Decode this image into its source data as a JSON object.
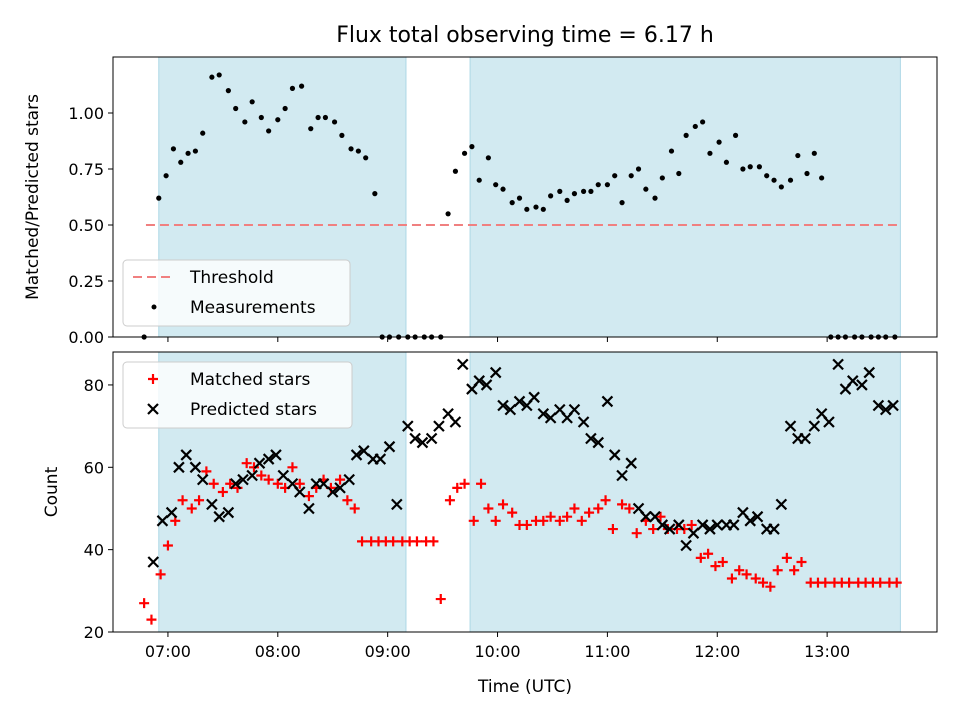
{
  "title": "Flux total observing time = 6.17 h",
  "colors": {
    "band": "#add8e6",
    "threshold": "#f08080",
    "measurement": "#000000",
    "matched": "#ff0000",
    "predicted": "#000000"
  },
  "chart_data": [
    {
      "type": "scatter",
      "title": "Flux total observing time = 6.17 h",
      "xlabel": "",
      "ylabel": "Matched/Predicted stars",
      "xlim": [
        "06:30",
        "14:00"
      ],
      "ylim": [
        0,
        1.25
      ],
      "yticks": [
        0.0,
        0.25,
        0.5,
        0.75,
        1.0
      ],
      "ytick_labels": [
        "0.00",
        "0.25",
        "0.50",
        "0.75",
        "1.00"
      ],
      "grid": false,
      "legend_position": "lower-left",
      "shaded_intervals": [
        [
          "06:55",
          "09:10"
        ],
        [
          "09:45",
          "13:40"
        ]
      ],
      "series": [
        {
          "name": "Threshold",
          "kind": "dashed-line",
          "x": [
            "06:48",
            "13:40"
          ],
          "y": [
            0.5,
            0.5
          ]
        },
        {
          "name": "Measurements",
          "kind": "points",
          "x": [
            "06:47",
            "06:55",
            "06:59",
            "07:03",
            "07:07",
            "07:11",
            "07:15",
            "07:19",
            "07:24",
            "07:28",
            "07:33",
            "07:37",
            "07:42",
            "07:46",
            "07:51",
            "07:55",
            "08:00",
            "08:04",
            "08:08",
            "08:13",
            "08:18",
            "08:22",
            "08:26",
            "08:31",
            "08:35",
            "08:40",
            "08:44",
            "08:48",
            "08:53",
            "08:57",
            "09:01",
            "09:06",
            "09:11",
            "09:15",
            "09:20",
            "09:24",
            "09:29",
            "09:33",
            "09:37",
            "09:42",
            "09:46",
            "09:50",
            "09:55",
            "09:59",
            "10:03",
            "10:08",
            "10:12",
            "10:16",
            "10:21",
            "10:25",
            "10:29",
            "10:34",
            "10:38",
            "10:42",
            "10:47",
            "10:51",
            "10:55",
            "11:00",
            "11:04",
            "11:08",
            "11:13",
            "11:17",
            "11:21",
            "11:26",
            "11:30",
            "11:35",
            "11:39",
            "11:43",
            "11:48",
            "11:52",
            "11:56",
            "12:01",
            "12:05",
            "12:10",
            "12:14",
            "12:18",
            "12:23",
            "12:27",
            "12:31",
            "12:35",
            "12:40",
            "12:44",
            "12:49",
            "12:53",
            "12:57",
            "13:02",
            "13:06",
            "13:10",
            "13:15",
            "13:19",
            "13:24",
            "13:28",
            "13:32",
            "13:37"
          ],
          "y": [
            0.0,
            0.62,
            0.72,
            0.84,
            0.78,
            0.82,
            0.83,
            0.91,
            1.16,
            1.17,
            1.1,
            1.02,
            0.96,
            1.05,
            0.98,
            0.92,
            0.97,
            1.02,
            1.11,
            1.12,
            0.93,
            0.98,
            0.98,
            0.96,
            0.9,
            0.84,
            0.83,
            0.8,
            0.64,
            0.0,
            0.0,
            0.0,
            0.0,
            0.0,
            0.0,
            0.0,
            0.0,
            0.55,
            0.74,
            0.82,
            0.85,
            0.7,
            0.8,
            0.68,
            0.66,
            0.6,
            0.62,
            0.57,
            0.58,
            0.57,
            0.63,
            0.65,
            0.61,
            0.64,
            0.65,
            0.65,
            0.68,
            0.68,
            0.72,
            0.6,
            0.72,
            0.75,
            0.66,
            0.62,
            0.71,
            0.83,
            0.73,
            0.9,
            0.94,
            0.96,
            0.82,
            0.87,
            0.78,
            0.9,
            0.75,
            0.76,
            0.76,
            0.72,
            0.7,
            0.67,
            0.7,
            0.81,
            0.73,
            0.82,
            0.71,
            0.0,
            0.0,
            0.0,
            0.0,
            0.0,
            0.0,
            0.0,
            0.0,
            0.0
          ]
        }
      ]
    },
    {
      "type": "scatter",
      "title": "",
      "xlabel": "Time (UTC)",
      "ylabel": "Count",
      "xlim": [
        "06:30",
        "14:00"
      ],
      "ylim": [
        20,
        88
      ],
      "xticks": [
        "07:00",
        "08:00",
        "09:00",
        "10:00",
        "11:00",
        "12:00",
        "13:00"
      ],
      "yticks": [
        20,
        40,
        60,
        80
      ],
      "grid": false,
      "legend_position": "upper-left",
      "shaded_intervals": [
        [
          "06:55",
          "09:10"
        ],
        [
          "09:45",
          "13:40"
        ]
      ],
      "series": [
        {
          "name": "Matched stars",
          "marker": "plus",
          "x": [
            "06:47",
            "06:51",
            "06:56",
            "07:00",
            "07:04",
            "07:08",
            "07:13",
            "07:17",
            "07:21",
            "07:25",
            "07:30",
            "07:34",
            "07:38",
            "07:43",
            "07:47",
            "07:51",
            "07:55",
            "08:00",
            "08:04",
            "08:08",
            "08:12",
            "08:17",
            "08:21",
            "08:25",
            "08:29",
            "08:34",
            "08:38",
            "08:42",
            "08:46",
            "08:51",
            "08:55",
            "08:59",
            "09:03",
            "09:08",
            "09:12",
            "09:16",
            "09:21",
            "09:25",
            "09:29",
            "09:34",
            "09:38",
            "09:42",
            "09:47",
            "09:51",
            "09:55",
            "09:59",
            "10:03",
            "10:08",
            "10:12",
            "10:16",
            "10:21",
            "10:25",
            "10:29",
            "10:34",
            "10:38",
            "10:42",
            "10:46",
            "10:50",
            "10:55",
            "10:59",
            "11:03",
            "11:08",
            "11:12",
            "11:16",
            "11:21",
            "11:25",
            "11:29",
            "11:33",
            "11:38",
            "11:42",
            "11:46",
            "11:51",
            "11:55",
            "11:59",
            "12:03",
            "12:08",
            "12:12",
            "12:16",
            "12:21",
            "12:25",
            "12:29",
            "12:33",
            "12:38",
            "12:42",
            "12:46",
            "12:51",
            "12:55",
            "12:59",
            "13:04",
            "13:08",
            "13:12",
            "13:17",
            "13:21",
            "13:25",
            "13:29",
            "13:34",
            "13:38"
          ],
          "y": [
            27,
            23,
            34,
            41,
            47,
            52,
            50,
            52,
            59,
            56,
            54,
            56,
            55,
            61,
            60,
            58,
            57,
            56,
            55,
            60,
            56,
            53,
            55,
            57,
            55,
            57,
            52,
            50,
            42,
            42,
            42,
            42,
            42,
            42,
            42,
            42,
            42,
            42,
            28,
            52,
            55,
            56,
            47,
            56,
            50,
            47,
            51,
            49,
            46,
            46,
            47,
            47,
            48,
            47,
            48,
            50,
            47,
            49,
            50,
            52,
            45,
            51,
            50,
            44,
            47,
            45,
            48,
            45,
            45,
            45,
            46,
            38,
            39,
            36,
            37,
            33,
            35,
            34,
            33,
            32,
            31,
            35,
            38,
            35,
            37,
            32,
            32,
            32,
            32,
            32,
            32,
            32,
            32,
            32,
            32,
            32,
            32
          ]
        },
        {
          "name": "Predicted stars",
          "marker": "x",
          "x": [
            "06:52",
            "06:57",
            "07:02",
            "07:06",
            "07:10",
            "07:15",
            "07:19",
            "07:24",
            "07:28",
            "07:33",
            "07:37",
            "07:41",
            "07:46",
            "07:50",
            "07:55",
            "07:59",
            "08:03",
            "08:08",
            "08:12",
            "08:17",
            "08:21",
            "08:25",
            "08:30",
            "08:34",
            "08:39",
            "08:43",
            "08:47",
            "08:52",
            "08:56",
            "09:01",
            "09:05",
            "09:11",
            "09:15",
            "09:19",
            "09:24",
            "09:28",
            "09:33",
            "09:37",
            "09:41",
            "09:46",
            "09:50",
            "09:54",
            "09:59",
            "10:03",
            "10:07",
            "10:12",
            "10:16",
            "10:20",
            "10:25",
            "10:29",
            "10:34",
            "10:38",
            "10:42",
            "10:47",
            "10:51",
            "10:55",
            "11:00",
            "11:04",
            "11:08",
            "11:13",
            "11:17",
            "11:21",
            "11:26",
            "11:30",
            "11:34",
            "11:39",
            "11:43",
            "11:47",
            "11:52",
            "11:56",
            "12:00",
            "12:05",
            "12:09",
            "12:14",
            "12:18",
            "12:22",
            "12:27",
            "12:31",
            "12:35",
            "12:40",
            "12:44",
            "12:48",
            "12:53",
            "12:57",
            "13:01",
            "13:06",
            "13:10",
            "13:14",
            "13:19",
            "13:23",
            "13:28",
            "13:32",
            "13:36"
          ],
          "y": [
            37,
            47,
            49,
            60,
            63,
            60,
            57,
            51,
            48,
            49,
            56,
            57,
            58,
            61,
            62,
            63,
            58,
            56,
            54,
            50,
            56,
            56,
            54,
            55,
            57,
            63,
            64,
            62,
            62,
            65,
            51,
            70,
            67,
            66,
            67,
            70,
            73,
            71,
            85,
            79,
            81,
            80,
            83,
            75,
            74,
            76,
            75,
            77,
            73,
            72,
            74,
            72,
            74,
            71,
            67,
            66,
            76,
            63,
            58,
            61,
            50,
            48,
            48,
            46,
            45,
            46,
            41,
            44,
            46,
            45,
            46,
            46,
            46,
            49,
            47,
            48,
            45,
            45,
            51,
            70,
            67,
            67,
            70,
            73,
            71,
            85,
            79,
            81,
            80,
            83,
            75,
            74,
            75
          ]
        }
      ]
    }
  ]
}
